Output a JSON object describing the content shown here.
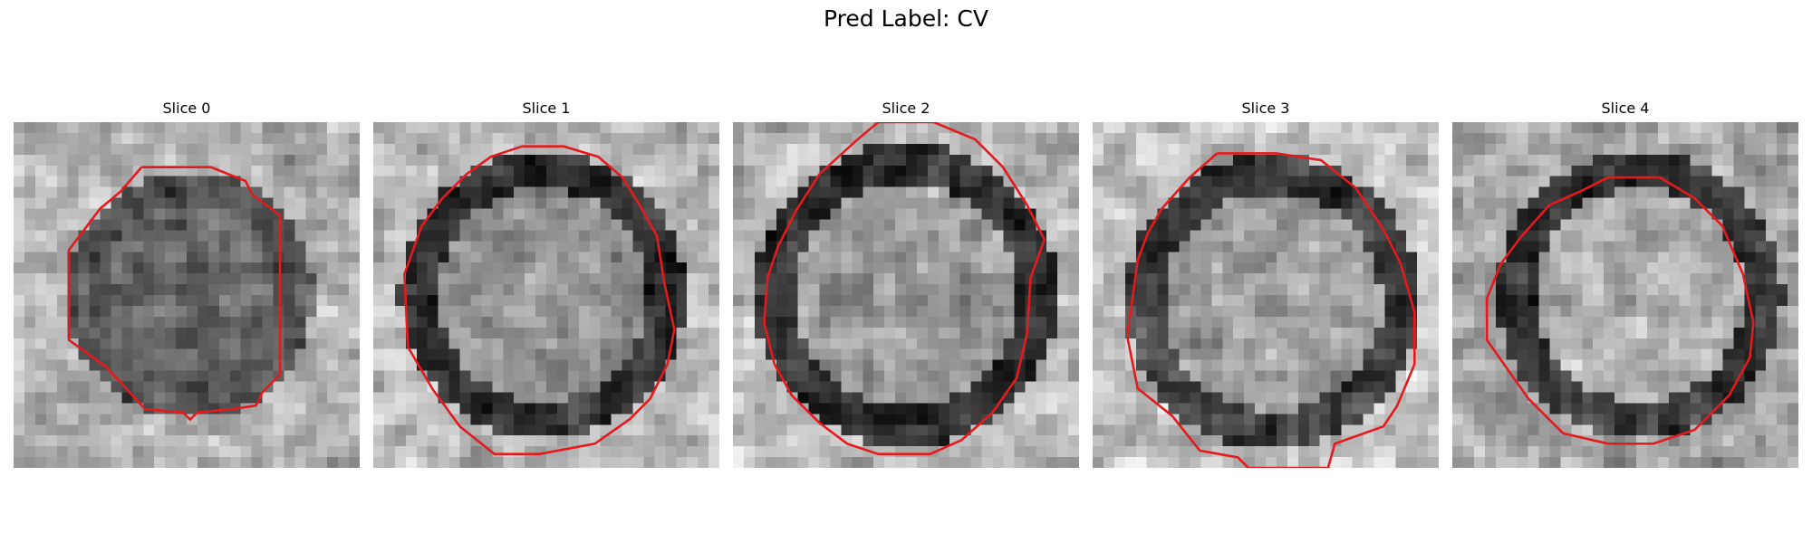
{
  "figure": {
    "title": "Pred Label: CV"
  },
  "panels": [
    {
      "title": "Slice 0"
    },
    {
      "title": "Slice 1"
    },
    {
      "title": "Slice 2"
    },
    {
      "title": "Slice 3"
    },
    {
      "title": "Slice 4"
    }
  ],
  "colors": {
    "contour": "#e41a1c",
    "background": "#ffffff"
  }
}
